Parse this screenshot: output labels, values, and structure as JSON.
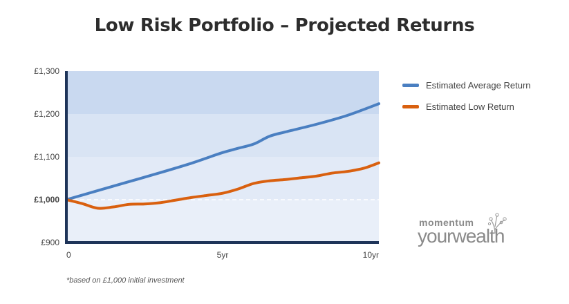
{
  "title": "Low Risk Portfolio – Projected Returns",
  "footnote": "*based on £1,000 initial investment",
  "logo": {
    "top": "momentum",
    "bottom": "yourwealth"
  },
  "colors": {
    "avg": "#4a7fc1",
    "low": "#d9600f",
    "axis": "#1e3459"
  },
  "chart_data": {
    "type": "line",
    "title": "Low Risk Portfolio – Projected Returns",
    "xlabel": "",
    "ylabel": "",
    "xlim": [
      0,
      10
    ],
    "ylim": [
      900,
      1300
    ],
    "x_ticks": [
      0,
      5,
      10
    ],
    "x_tick_labels": [
      "0",
      "5yr",
      "10yr"
    ],
    "y_ticks": [
      900,
      1000,
      1100,
      1200,
      1300
    ],
    "y_tick_labels": [
      "£900",
      "£1,000",
      "£1,100",
      "£1,200",
      "£1,300"
    ],
    "baseline": 1000,
    "legend_position": "top-right",
    "series": [
      {
        "name": "Estimated Average Return",
        "color": "#4a7fc1",
        "x": [
          0,
          1,
          2,
          3,
          4,
          4.6,
          5,
          5.5,
          6,
          6.5,
          7,
          8,
          9,
          10
        ],
        "y": [
          1000,
          1021,
          1042,
          1063,
          1085,
          1100,
          1110,
          1120,
          1130,
          1148,
          1158,
          1176,
          1197,
          1224
        ]
      },
      {
        "name": "Estimated Low Return",
        "color": "#d9600f",
        "x": [
          0,
          0.5,
          1,
          1.5,
          2,
          2.5,
          3,
          3.5,
          4,
          4.5,
          5,
          5.5,
          6,
          6.5,
          7,
          7.5,
          8,
          8.5,
          9,
          9.5,
          10
        ],
        "y": [
          1000,
          991,
          980,
          983,
          989,
          990,
          993,
          999,
          1005,
          1010,
          1015,
          1025,
          1038,
          1044,
          1047,
          1051,
          1055,
          1062,
          1066,
          1073,
          1086
        ]
      }
    ]
  }
}
